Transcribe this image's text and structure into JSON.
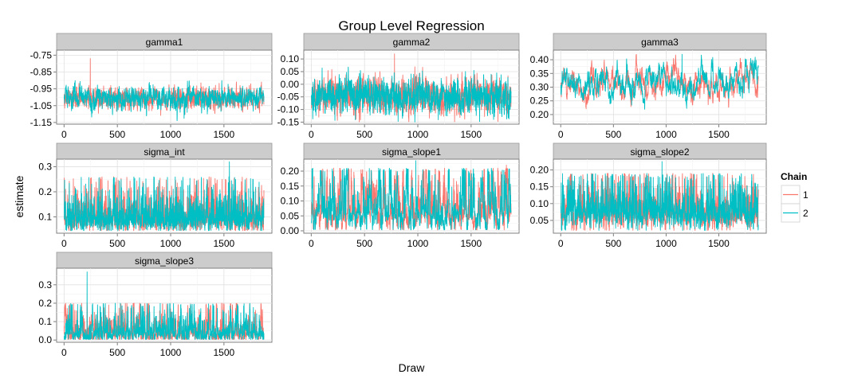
{
  "chart_data": {
    "type": "line",
    "title": "Group Level Regression",
    "xlabel": "Draw",
    "ylabel": "estimate",
    "legend": {
      "title": "Chain",
      "placement": "right",
      "entries": [
        "1",
        "2"
      ]
    },
    "series": [
      {
        "name": "1",
        "color": "#F8766D"
      },
      {
        "name": "2",
        "color": "#00BFC4"
      }
    ],
    "grid": true,
    "n_draws": 1875,
    "panels": [
      {
        "name": "gamma1",
        "xticks": [
          "0",
          "500",
          "1000",
          "1500"
        ],
        "yticks": [
          "-0.75",
          "-0.85",
          "-0.95",
          "-1.05",
          "-1.15"
        ],
        "xlim": [
          -70,
          1950
        ],
        "ylim": [
          -1.16,
          -0.72
        ],
        "trace": {
          "mean": -1.005,
          "sd": 0.032,
          "phi": 0.6,
          "min": -1.14,
          "max": -0.9
        },
        "spikes": [
          {
            "chain": 1,
            "draw": 245,
            "value": -0.77
          }
        ]
      },
      {
        "name": "gamma2",
        "xticks": [
          "0",
          "500",
          "1000",
          "1500"
        ],
        "yticks": [
          "0.10",
          "0.05",
          "0.00",
          "-0.05",
          "-0.10",
          "-0.15"
        ],
        "xlim": [
          -70,
          1950
        ],
        "ylim": [
          -0.158,
          0.135
        ],
        "trace": {
          "mean": -0.045,
          "sd": 0.034,
          "phi": 0.55,
          "min": -0.15,
          "max": 0.07
        },
        "spikes": [
          {
            "chain": 1,
            "draw": 780,
            "value": 0.12
          }
        ]
      },
      {
        "name": "gamma3",
        "xticks": [
          "0",
          "500",
          "1000",
          "1500"
        ],
        "yticks": [
          "0.40",
          "0.35",
          "0.30",
          "0.25",
          "0.20"
        ],
        "xlim": [
          -70,
          1950
        ],
        "ylim": [
          0.165,
          0.435
        ],
        "trace": {
          "mean": 0.315,
          "sd": 0.035,
          "phi": 0.93,
          "min": 0.18,
          "max": 0.42
        },
        "spikes": [
          {
            "chain": 2,
            "draw": 1150,
            "value": 0.42
          }
        ]
      },
      {
        "name": "sigma_int",
        "xticks": [
          "0",
          "500",
          "1000",
          "1500"
        ],
        "yticks": [
          "0.3",
          "0.2",
          "0.1"
        ],
        "xlim": [
          -70,
          1950
        ],
        "ylim": [
          0.035,
          0.33
        ],
        "trace": {
          "mean": 0.095,
          "sd": 0.025,
          "phi": 0.4,
          "min": 0.045,
          "max": 0.26
        },
        "spikes": [
          {
            "chain": 2,
            "draw": 1550,
            "value": 0.32
          }
        ]
      },
      {
        "name": "sigma_slope1",
        "xticks": [
          "0",
          "500",
          "1000",
          "1500"
        ],
        "yticks": [
          "0.20",
          "0.15",
          "0.10",
          "0.05",
          "0.00"
        ],
        "xlim": [
          -70,
          1950
        ],
        "ylim": [
          -0.008,
          0.24
        ],
        "trace": {
          "mean": 0.06,
          "sd": 0.032,
          "phi": 0.82,
          "min": 0.003,
          "max": 0.21
        },
        "spikes": [
          {
            "chain": 2,
            "draw": 980,
            "value": 0.235
          },
          {
            "chain": 1,
            "draw": 1830,
            "value": 0.22
          }
        ]
      },
      {
        "name": "sigma_slope2",
        "xticks": [
          "0",
          "500",
          "1000",
          "1500"
        ],
        "yticks": [
          "0.20",
          "0.15",
          "0.10",
          "0.05"
        ],
        "xlim": [
          -70,
          1950
        ],
        "ylim": [
          0.012,
          0.232
        ],
        "trace": {
          "mean": 0.075,
          "sd": 0.024,
          "phi": 0.55,
          "min": 0.02,
          "max": 0.19
        },
        "spikes": [
          {
            "chain": 2,
            "draw": 960,
            "value": 0.225
          }
        ]
      },
      {
        "name": "sigma_slope3",
        "xticks": [
          "0",
          "500",
          "1000",
          "1500"
        ],
        "yticks": [
          "0.3",
          "0.2",
          "0.1",
          "0.0"
        ],
        "xlim": [
          -70,
          1950
        ],
        "ylim": [
          -0.012,
          0.39
        ],
        "trace": {
          "mean": 0.04,
          "sd": 0.028,
          "phi": 0.7,
          "min": 0.003,
          "max": 0.2
        },
        "spikes": [
          {
            "chain": 2,
            "draw": 215,
            "value": 0.37
          },
          {
            "chain": 1,
            "draw": 215,
            "value": 0.2
          }
        ]
      }
    ]
  }
}
